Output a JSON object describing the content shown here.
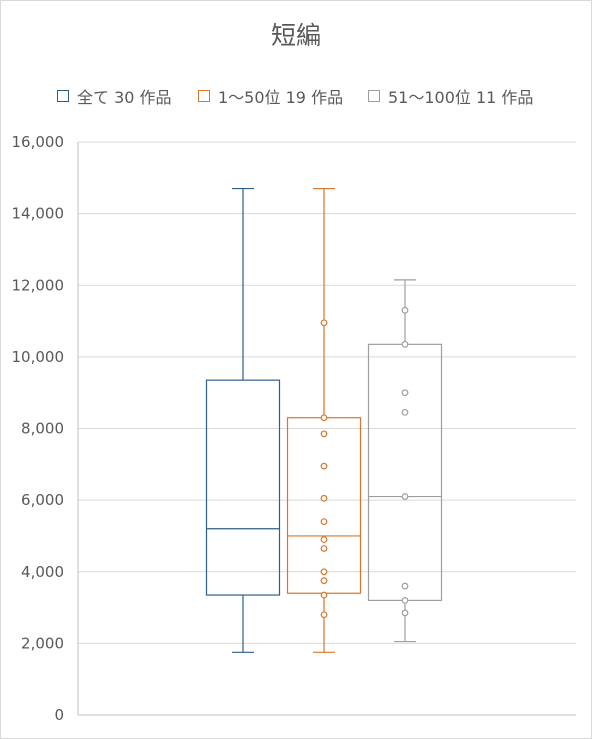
{
  "chart_data": {
    "type": "box",
    "title": "短編",
    "legend_position": "top",
    "ylim": [
      0,
      16000
    ],
    "y_ticks": [
      "0",
      "2,000",
      "4,000",
      "6,000",
      "8,000",
      "10,000",
      "12,000",
      "14,000",
      "16,000"
    ],
    "grid": true,
    "series": [
      {
        "name": "全て 30 作品",
        "color": "#2e5f8a",
        "min": 1750,
        "q1": 3350,
        "median": 5200,
        "q3": 9350,
        "max": 14700,
        "points": []
      },
      {
        "name": "1～50位 19 作品",
        "color": "#d9762b",
        "min": 1750,
        "q1": 3400,
        "median": 5000,
        "q3": 8300,
        "max": 14700,
        "points": [
          10950,
          8300,
          7850,
          6950,
          6050,
          5400,
          4900,
          4650,
          4000,
          3750,
          3350,
          2800
        ]
      },
      {
        "name": "51～100位 11 作品",
        "color": "#9e9e9e",
        "min": 2050,
        "q1": 3200,
        "median": 6100,
        "q3": 10350,
        "max": 12150,
        "points": [
          11300,
          10350,
          9000,
          8450,
          6100,
          3600,
          3200,
          2850
        ]
      }
    ]
  }
}
